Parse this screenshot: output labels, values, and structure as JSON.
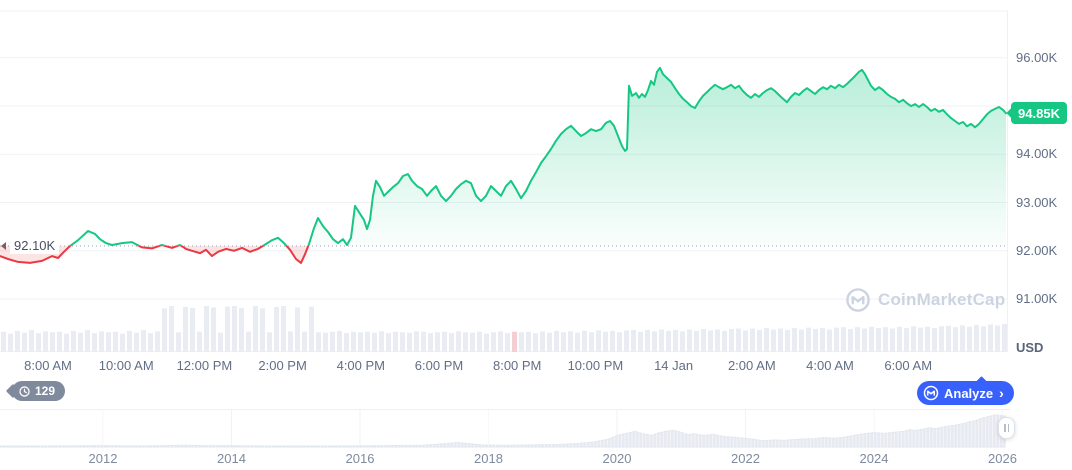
{
  "price_axis": {
    "ticks": [
      {
        "label": "96.00K",
        "price": 96
      },
      {
        "label": "94.00K",
        "price": 94
      },
      {
        "label": "93.00K",
        "price": 93
      },
      {
        "label": "92.00K",
        "price": 92
      },
      {
        "label": "91.00K",
        "price": 91
      }
    ],
    "unit_label": "USD"
  },
  "current_price": {
    "label": "94.85K",
    "value": 94.85,
    "badge_color": "#16c784"
  },
  "baseline": {
    "label": "92.10K",
    "value": 92.1
  },
  "time_axis": {
    "labels": [
      "8:00 AM",
      "10:00 AM",
      "12:00 PM",
      "2:00 PM",
      "4:00 PM",
      "6:00 PM",
      "8:00 PM",
      "10:00 PM",
      "14 Jan",
      "2:00 AM",
      "4:00 AM",
      "6:00 AM"
    ]
  },
  "badges": {
    "history_count": "129",
    "analyze_label": "Analyze",
    "analyze_chevron": "›"
  },
  "watermark": {
    "text": "CoinMarketCap"
  },
  "timeline": {
    "years": [
      "2012",
      "2014",
      "2016",
      "2018",
      "2020",
      "2022",
      "2024",
      "2026"
    ]
  },
  "colors": {
    "up": "#16c784",
    "down": "#ea3943",
    "accent_blue": "#3861fb",
    "grid": "#eff2f5",
    "axis_text": "#616e85",
    "volume_bar": "#e9edf3",
    "volume_bar_down": "#f3ced3",
    "overview_fill": "#e7ebf1"
  },
  "chart_data": {
    "type": "area",
    "title": "24-hour price chart with all-time overview",
    "ylabel": "USD",
    "ylim": [
      90.8,
      96.4
    ],
    "grid": true,
    "baseline_price": 92.1,
    "current_price": 94.85,
    "y_tick_values": [
      96,
      95,
      94,
      93,
      92,
      91
    ],
    "x_tick_labels": [
      "8:00 AM",
      "10:00 AM",
      "12:00 PM",
      "2:00 PM",
      "4:00 PM",
      "6:00 PM",
      "8:00 PM",
      "10:00 PM",
      "14 Jan",
      "2:00 AM",
      "4:00 AM",
      "6:00 AM"
    ],
    "series_points": [
      [
        0,
        91.89
      ],
      [
        8,
        91.83
      ],
      [
        18,
        91.77
      ],
      [
        30,
        91.75
      ],
      [
        42,
        91.79
      ],
      [
        52,
        91.89
      ],
      [
        58,
        91.85
      ],
      [
        64,
        91.98
      ],
      [
        70,
        92.1
      ],
      [
        78,
        92.22
      ],
      [
        88,
        92.41
      ],
      [
        95,
        92.35
      ],
      [
        100,
        92.24
      ],
      [
        106,
        92.16
      ],
      [
        112,
        92.12
      ],
      [
        122,
        92.16
      ],
      [
        132,
        92.18
      ],
      [
        142,
        92.07
      ],
      [
        152,
        92.05
      ],
      [
        162,
        92.12
      ],
      [
        172,
        92.06
      ],
      [
        180,
        92.12
      ],
      [
        186,
        92.04
      ],
      [
        192,
        92.0
      ],
      [
        200,
        91.95
      ],
      [
        206,
        92.02
      ],
      [
        212,
        91.89
      ],
      [
        218,
        91.98
      ],
      [
        226,
        92.04
      ],
      [
        234,
        92.0
      ],
      [
        242,
        92.06
      ],
      [
        250,
        91.98
      ],
      [
        258,
        92.04
      ],
      [
        266,
        92.14
      ],
      [
        272,
        92.22
      ],
      [
        278,
        92.27
      ],
      [
        284,
        92.16
      ],
      [
        290,
        92.02
      ],
      [
        296,
        91.83
      ],
      [
        301,
        91.75
      ],
      [
        305,
        91.93
      ],
      [
        309,
        92.14
      ],
      [
        314,
        92.47
      ],
      [
        318,
        92.68
      ],
      [
        323,
        92.51
      ],
      [
        328,
        92.39
      ],
      [
        333,
        92.24
      ],
      [
        338,
        92.16
      ],
      [
        343,
        92.24
      ],
      [
        347,
        92.12
      ],
      [
        351,
        92.27
      ],
      [
        355,
        92.93
      ],
      [
        359,
        92.8
      ],
      [
        364,
        92.64
      ],
      [
        367,
        92.45
      ],
      [
        370,
        92.64
      ],
      [
        373,
        93.14
      ],
      [
        376,
        93.45
      ],
      [
        380,
        93.32
      ],
      [
        384,
        93.14
      ],
      [
        388,
        93.22
      ],
      [
        393,
        93.32
      ],
      [
        398,
        93.4
      ],
      [
        403,
        93.55
      ],
      [
        408,
        93.59
      ],
      [
        412,
        93.45
      ],
      [
        417,
        93.34
      ],
      [
        422,
        93.28
      ],
      [
        427,
        93.14
      ],
      [
        431,
        93.24
      ],
      [
        436,
        93.34
      ],
      [
        441,
        93.14
      ],
      [
        446,
        93.03
      ],
      [
        451,
        93.14
      ],
      [
        456,
        93.28
      ],
      [
        461,
        93.38
      ],
      [
        466,
        93.45
      ],
      [
        471,
        93.4
      ],
      [
        476,
        93.14
      ],
      [
        481,
        93.03
      ],
      [
        486,
        93.14
      ],
      [
        491,
        93.34
      ],
      [
        496,
        93.24
      ],
      [
        501,
        93.14
      ],
      [
        506,
        93.34
      ],
      [
        511,
        93.45
      ],
      [
        516,
        93.28
      ],
      [
        521,
        93.09
      ],
      [
        526,
        93.24
      ],
      [
        531,
        93.45
      ],
      [
        536,
        93.63
      ],
      [
        541,
        93.82
      ],
      [
        546,
        93.96
      ],
      [
        551,
        94.11
      ],
      [
        556,
        94.28
      ],
      [
        561,
        94.42
      ],
      [
        566,
        94.52
      ],
      [
        571,
        94.59
      ],
      [
        576,
        94.48
      ],
      [
        581,
        94.38
      ],
      [
        586,
        94.44
      ],
      [
        591,
        94.52
      ],
      [
        596,
        94.48
      ],
      [
        601,
        94.52
      ],
      [
        606,
        94.65
      ],
      [
        610,
        94.69
      ],
      [
        614,
        94.59
      ],
      [
        618,
        94.38
      ],
      [
        622,
        94.17
      ],
      [
        625,
        94.07
      ],
      [
        627,
        94.11
      ],
      [
        629,
        95.42
      ],
      [
        632,
        95.21
      ],
      [
        636,
        95.27
      ],
      [
        639,
        95.17
      ],
      [
        642,
        95.25
      ],
      [
        645,
        95.19
      ],
      [
        648,
        95.33
      ],
      [
        651,
        95.52
      ],
      [
        654,
        95.44
      ],
      [
        657,
        95.71
      ],
      [
        660,
        95.79
      ],
      [
        663,
        95.66
      ],
      [
        667,
        95.58
      ],
      [
        671,
        95.5
      ],
      [
        675,
        95.37
      ],
      [
        679,
        95.25
      ],
      [
        683,
        95.15
      ],
      [
        687,
        95.08
      ],
      [
        691,
        95.0
      ],
      [
        695,
        94.96
      ],
      [
        699,
        95.1
      ],
      [
        703,
        95.21
      ],
      [
        707,
        95.29
      ],
      [
        711,
        95.37
      ],
      [
        715,
        95.44
      ],
      [
        719,
        95.39
      ],
      [
        723,
        95.35
      ],
      [
        727,
        95.39
      ],
      [
        731,
        95.44
      ],
      [
        735,
        95.37
      ],
      [
        739,
        95.42
      ],
      [
        743,
        95.31
      ],
      [
        747,
        95.23
      ],
      [
        751,
        95.17
      ],
      [
        755,
        95.25
      ],
      [
        759,
        95.19
      ],
      [
        763,
        95.27
      ],
      [
        767,
        95.33
      ],
      [
        771,
        95.37
      ],
      [
        775,
        95.31
      ],
      [
        779,
        95.23
      ],
      [
        783,
        95.15
      ],
      [
        787,
        95.08
      ],
      [
        791,
        95.19
      ],
      [
        795,
        95.27
      ],
      [
        799,
        95.23
      ],
      [
        803,
        95.31
      ],
      [
        807,
        95.37
      ],
      [
        811,
        95.31
      ],
      [
        815,
        95.25
      ],
      [
        819,
        95.33
      ],
      [
        823,
        95.39
      ],
      [
        827,
        95.35
      ],
      [
        831,
        95.42
      ],
      [
        835,
        95.37
      ],
      [
        839,
        95.44
      ],
      [
        843,
        95.39
      ],
      [
        847,
        95.46
      ],
      [
        851,
        95.54
      ],
      [
        855,
        95.62
      ],
      [
        859,
        95.71
      ],
      [
        862,
        95.75
      ],
      [
        865,
        95.66
      ],
      [
        868,
        95.54
      ],
      [
        871,
        95.42
      ],
      [
        875,
        95.33
      ],
      [
        879,
        95.39
      ],
      [
        883,
        95.33
      ],
      [
        887,
        95.25
      ],
      [
        891,
        95.19
      ],
      [
        895,
        95.15
      ],
      [
        899,
        95.08
      ],
      [
        903,
        95.13
      ],
      [
        907,
        95.06
      ],
      [
        911,
        95.0
      ],
      [
        915,
        95.04
      ],
      [
        919,
        94.98
      ],
      [
        923,
        95.04
      ],
      [
        927,
        94.98
      ],
      [
        931,
        94.9
      ],
      [
        935,
        94.94
      ],
      [
        939,
        94.88
      ],
      [
        943,
        94.92
      ],
      [
        947,
        94.83
      ],
      [
        951,
        94.75
      ],
      [
        955,
        94.69
      ],
      [
        959,
        94.63
      ],
      [
        963,
        94.67
      ],
      [
        967,
        94.58
      ],
      [
        971,
        94.63
      ],
      [
        975,
        94.56
      ],
      [
        979,
        94.63
      ],
      [
        983,
        94.73
      ],
      [
        987,
        94.83
      ],
      [
        991,
        94.9
      ],
      [
        995,
        94.94
      ],
      [
        999,
        94.98
      ],
      [
        1003,
        94.92
      ],
      [
        1006,
        94.85
      ]
    ],
    "volume_bars": {
      "heights": [
        44,
        40,
        46,
        42,
        48,
        41,
        45,
        43,
        44,
        40,
        46,
        42,
        48,
        41,
        45,
        43,
        44,
        40,
        46,
        42,
        48,
        41,
        45,
        95,
        100,
        43,
        98,
        96,
        44,
        100,
        97,
        42,
        99,
        100,
        96,
        44,
        100,
        95,
        43,
        98,
        100,
        45,
        97,
        44,
        99,
        43,
        42,
        44,
        46,
        41,
        44,
        43,
        44,
        42,
        45,
        41,
        44,
        43,
        42,
        45,
        44,
        41,
        43,
        44,
        41,
        45,
        43,
        42,
        44,
        40,
        43,
        45,
        41,
        44,
        43,
        44,
        41,
        45,
        42,
        46,
        43,
        45,
        42,
        46,
        43,
        47,
        44,
        46,
        43,
        47,
        48,
        44,
        48,
        45,
        49,
        46,
        48,
        45,
        49,
        46,
        50,
        47,
        49,
        46,
        50,
        51,
        47,
        51,
        48,
        52,
        49,
        51,
        48,
        52,
        49,
        53,
        50,
        52,
        49,
        53,
        54,
        50,
        54,
        51,
        55,
        52,
        54,
        51,
        55,
        52,
        56,
        53,
        55,
        52,
        56,
        57,
        54,
        58,
        55,
        59,
        56,
        60,
        58,
        61
      ],
      "red_indices": [
        73
      ]
    },
    "overview": {
      "points": [
        [
          0,
          0.03
        ],
        [
          0.05,
          0.03
        ],
        [
          0.1,
          0.04
        ],
        [
          0.14,
          0.03
        ],
        [
          0.185,
          0.05
        ],
        [
          0.2,
          0.04
        ],
        [
          0.23,
          0.04
        ],
        [
          0.26,
          0.03
        ],
        [
          0.3,
          0.03
        ],
        [
          0.34,
          0.03
        ],
        [
          0.38,
          0.04
        ],
        [
          0.42,
          0.05
        ],
        [
          0.445,
          0.1
        ],
        [
          0.455,
          0.13
        ],
        [
          0.465,
          0.1
        ],
        [
          0.48,
          0.06
        ],
        [
          0.5,
          0.05
        ],
        [
          0.53,
          0.06
        ],
        [
          0.555,
          0.07
        ],
        [
          0.575,
          0.1
        ],
        [
          0.59,
          0.14
        ],
        [
          0.605,
          0.22
        ],
        [
          0.615,
          0.34
        ],
        [
          0.625,
          0.4
        ],
        [
          0.632,
          0.45
        ],
        [
          0.64,
          0.38
        ],
        [
          0.648,
          0.33
        ],
        [
          0.655,
          0.4
        ],
        [
          0.663,
          0.45
        ],
        [
          0.67,
          0.48
        ],
        [
          0.678,
          0.42
        ],
        [
          0.685,
          0.35
        ],
        [
          0.69,
          0.38
        ],
        [
          0.7,
          0.33
        ],
        [
          0.71,
          0.36
        ],
        [
          0.72,
          0.3
        ],
        [
          0.73,
          0.28
        ],
        [
          0.74,
          0.25
        ],
        [
          0.75,
          0.22
        ],
        [
          0.76,
          0.18
        ],
        [
          0.77,
          0.2
        ],
        [
          0.78,
          0.19
        ],
        [
          0.79,
          0.21
        ],
        [
          0.8,
          0.23
        ],
        [
          0.81,
          0.24
        ],
        [
          0.82,
          0.27
        ],
        [
          0.83,
          0.25
        ],
        [
          0.84,
          0.28
        ],
        [
          0.85,
          0.33
        ],
        [
          0.86,
          0.38
        ],
        [
          0.87,
          0.41
        ],
        [
          0.88,
          0.39
        ],
        [
          0.89,
          0.42
        ],
        [
          0.9,
          0.45
        ],
        [
          0.905,
          0.5
        ],
        [
          0.91,
          0.47
        ],
        [
          0.92,
          0.52
        ],
        [
          0.925,
          0.55
        ],
        [
          0.93,
          0.52
        ],
        [
          0.94,
          0.58
        ],
        [
          0.95,
          0.62
        ],
        [
          0.955,
          0.65
        ],
        [
          0.96,
          0.68
        ],
        [
          0.965,
          0.72
        ],
        [
          0.97,
          0.75
        ],
        [
          0.975,
          0.8
        ],
        [
          0.98,
          0.85
        ],
        [
          0.985,
          0.88
        ],
        [
          0.99,
          0.92
        ],
        [
          0.995,
          0.9
        ],
        [
          1.0,
          0.88
        ]
      ],
      "year_labels": [
        "2012",
        "2014",
        "2016",
        "2018",
        "2020",
        "2022",
        "2024",
        "2026"
      ]
    }
  }
}
